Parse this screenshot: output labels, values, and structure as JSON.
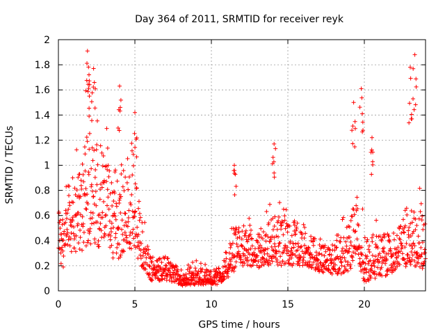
{
  "chart_data": {
    "type": "scatter",
    "title": "Day 364 of 2011, SRMTID for receiver reyk",
    "xlabel": "GPS time / hours",
    "ylabel": "SRMTID / TECUs",
    "xlim": [
      0,
      24
    ],
    "ylim": [
      0,
      2
    ],
    "xticks": [
      0,
      5,
      10,
      15,
      20
    ],
    "yticks": [
      0,
      0.2,
      0.4,
      0.6,
      0.8,
      1,
      1.2,
      1.4,
      1.6,
      1.8,
      2
    ],
    "grid": true,
    "marker": "+",
    "marker_color": "#ff0000",
    "note_on_points": "Dense scatter of several thousand samples; represented by an envelope of typical values per time bin plus notable peak points.",
    "envelope": [
      {
        "x": 0.0,
        "low": 0.15,
        "mid": 0.45,
        "high": 0.75
      },
      {
        "x": 0.5,
        "low": 0.2,
        "mid": 0.55,
        "high": 0.85
      },
      {
        "x": 1.0,
        "low": 0.3,
        "mid": 0.6,
        "high": 1.05
      },
      {
        "x": 1.5,
        "low": 0.3,
        "mid": 0.7,
        "high": 1.1
      },
      {
        "x": 2.0,
        "low": 0.35,
        "mid": 0.9,
        "high": 1.6
      },
      {
        "x": 2.5,
        "low": 0.35,
        "mid": 0.8,
        "high": 1.4
      },
      {
        "x": 3.0,
        "low": 0.35,
        "mid": 0.75,
        "high": 1.2
      },
      {
        "x": 3.5,
        "low": 0.2,
        "mid": 0.6,
        "high": 1.0
      },
      {
        "x": 4.0,
        "low": 0.25,
        "mid": 0.7,
        "high": 1.2
      },
      {
        "x": 4.5,
        "low": 0.35,
        "mid": 0.6,
        "high": 0.95
      },
      {
        "x": 5.0,
        "low": 0.3,
        "mid": 0.6,
        "high": 1.2
      },
      {
        "x": 5.5,
        "low": 0.18,
        "mid": 0.35,
        "high": 0.6
      },
      {
        "x": 6.0,
        "low": 0.08,
        "mid": 0.18,
        "high": 0.3
      },
      {
        "x": 7.0,
        "low": 0.08,
        "mid": 0.17,
        "high": 0.3
      },
      {
        "x": 8.0,
        "low": 0.04,
        "mid": 0.09,
        "high": 0.18
      },
      {
        "x": 9.0,
        "low": 0.05,
        "mid": 0.11,
        "high": 0.22
      },
      {
        "x": 10.0,
        "low": 0.05,
        "mid": 0.1,
        "high": 0.18
      },
      {
        "x": 10.5,
        "low": 0.05,
        "mid": 0.12,
        "high": 0.2
      },
      {
        "x": 11.0,
        "low": 0.1,
        "mid": 0.18,
        "high": 0.3
      },
      {
        "x": 11.5,
        "low": 0.15,
        "mid": 0.3,
        "high": 0.55
      },
      {
        "x": 12.0,
        "low": 0.2,
        "mid": 0.35,
        "high": 0.55
      },
      {
        "x": 13.0,
        "low": 0.18,
        "mid": 0.28,
        "high": 0.45
      },
      {
        "x": 14.0,
        "low": 0.2,
        "mid": 0.35,
        "high": 0.65
      },
      {
        "x": 15.0,
        "low": 0.2,
        "mid": 0.4,
        "high": 0.65
      },
      {
        "x": 16.0,
        "low": 0.2,
        "mid": 0.35,
        "high": 0.6
      },
      {
        "x": 17.0,
        "low": 0.15,
        "mid": 0.25,
        "high": 0.4
      },
      {
        "x": 18.0,
        "low": 0.12,
        "mid": 0.25,
        "high": 0.4
      },
      {
        "x": 19.0,
        "low": 0.15,
        "mid": 0.35,
        "high": 0.6
      },
      {
        "x": 19.5,
        "low": 0.2,
        "mid": 0.45,
        "high": 0.85
      },
      {
        "x": 20.0,
        "low": 0.05,
        "mid": 0.2,
        "high": 0.5
      },
      {
        "x": 20.5,
        "low": 0.1,
        "mid": 0.3,
        "high": 0.5
      },
      {
        "x": 21.0,
        "low": 0.1,
        "mid": 0.3,
        "high": 0.5
      },
      {
        "x": 22.0,
        "low": 0.15,
        "mid": 0.3,
        "high": 0.5
      },
      {
        "x": 23.0,
        "low": 0.2,
        "mid": 0.4,
        "high": 0.8
      },
      {
        "x": 24.0,
        "low": 0.15,
        "mid": 0.35,
        "high": 0.7
      }
    ],
    "peaks": [
      {
        "x": 1.9,
        "y": 1.91
      },
      {
        "x": 2.3,
        "y": 1.77
      },
      {
        "x": 2.0,
        "y": 1.72
      },
      {
        "x": 4.0,
        "y": 1.63
      },
      {
        "x": 5.0,
        "y": 1.42
      },
      {
        "x": 11.5,
        "y": 1.0
      },
      {
        "x": 14.1,
        "y": 1.17
      },
      {
        "x": 19.3,
        "y": 1.5
      },
      {
        "x": 19.8,
        "y": 1.61
      },
      {
        "x": 20.5,
        "y": 1.22
      },
      {
        "x": 23.3,
        "y": 1.88
      },
      {
        "x": 23.0,
        "y": 1.78
      }
    ]
  }
}
